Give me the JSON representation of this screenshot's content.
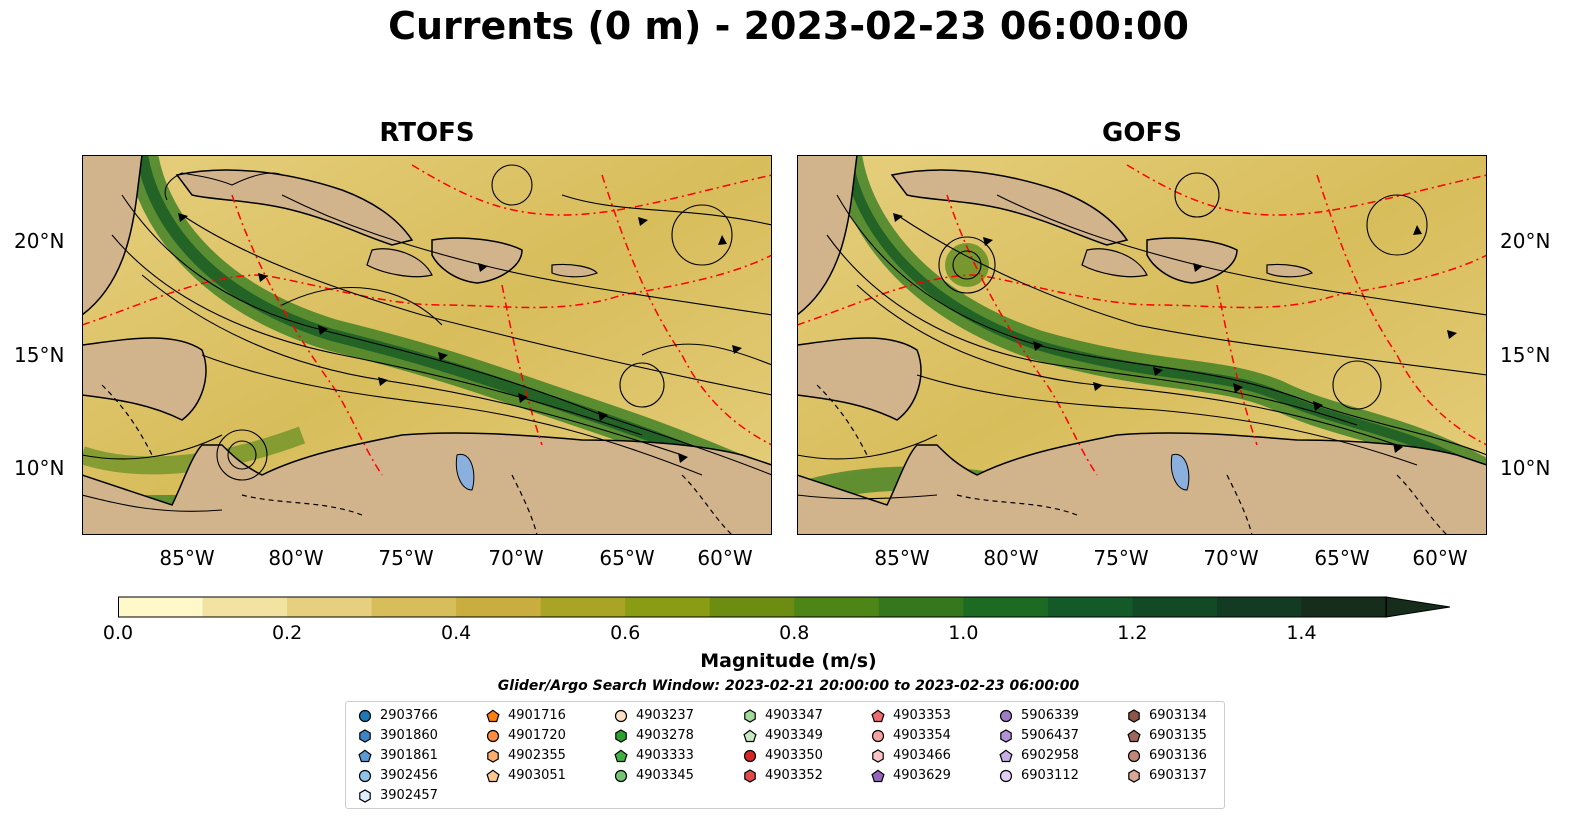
{
  "title": "Currents (0 m) - 2023-02-23 06:00:00",
  "panels": [
    {
      "title": "RTOFS"
    },
    {
      "title": "GOFS"
    }
  ],
  "lat_labels": [
    "20°N",
    "15°N",
    "10°N"
  ],
  "lon_labels": [
    "85°W",
    "80°W",
    "75°W",
    "70°W",
    "65°W",
    "60°W"
  ],
  "colorbar": {
    "label": "Magnitude (m/s)",
    "ticks": [
      "0.0",
      "0.2",
      "0.4",
      "0.6",
      "0.8",
      "1.0",
      "1.2",
      "1.4"
    ],
    "min": 0.0,
    "max": 1.5,
    "extend": "max",
    "colors": [
      "#fff8c8",
      "#f3e3a2",
      "#e6cf7e",
      "#d8bd5b",
      "#c9ad3e",
      "#a9a426",
      "#8a9b14",
      "#6c8d12",
      "#4d8516",
      "#35771c",
      "#1d6a23",
      "#145a28",
      "#124a26",
      "#133a22",
      "#162d1c"
    ]
  },
  "search_window": "Glider/Argo Search Window: 2023-02-21 20:00:00 to 2023-02-23 06:00:00",
  "colors": {
    "land": "#d2b48c",
    "coastline": "#000000",
    "eez_boundary": "#ff0000",
    "streamline": "#000000",
    "lake": "#8bb0de"
  },
  "legend": [
    {
      "id": "2903766",
      "marker": "circle",
      "color": "#1f77b4"
    },
    {
      "id": "3901860",
      "marker": "hexagon",
      "color": "#3d85c6"
    },
    {
      "id": "3901861",
      "marker": "pentagon",
      "color": "#5b9bd5"
    },
    {
      "id": "3902456",
      "marker": "circle",
      "color": "#8ec3ec"
    },
    {
      "id": "3902457",
      "marker": "hexagon",
      "color": "#ddeeff"
    },
    {
      "id": "4901716",
      "marker": "pentagon",
      "color": "#ff7f0e"
    },
    {
      "id": "4901720",
      "marker": "circle",
      "color": "#fd8d3c"
    },
    {
      "id": "4902355",
      "marker": "hexagon",
      "color": "#fdae6b"
    },
    {
      "id": "4903051",
      "marker": "pentagon",
      "color": "#fdc892"
    },
    {
      "id": "4903237",
      "marker": "circle",
      "color": "#fde0c5"
    },
    {
      "id": "4903278",
      "marker": "hexagon",
      "color": "#2ca02c"
    },
    {
      "id": "4903333",
      "marker": "pentagon",
      "color": "#41b041"
    },
    {
      "id": "4903345",
      "marker": "circle",
      "color": "#74c476"
    },
    {
      "id": "4903347",
      "marker": "hexagon",
      "color": "#a1d99b"
    },
    {
      "id": "4903349",
      "marker": "pentagon",
      "color": "#c7e9c0"
    },
    {
      "id": "4903350",
      "marker": "circle",
      "color": "#d62728"
    },
    {
      "id": "4903352",
      "marker": "hexagon",
      "color": "#e04a4a"
    },
    {
      "id": "4903353",
      "marker": "pentagon",
      "color": "#ee6b6e"
    },
    {
      "id": "4903354",
      "marker": "circle",
      "color": "#f4a3a3"
    },
    {
      "id": "4903466",
      "marker": "hexagon",
      "color": "#fcc5c5"
    },
    {
      "id": "4903629",
      "marker": "pentagon",
      "color": "#9467bd"
    },
    {
      "id": "5906339",
      "marker": "circle",
      "color": "#a07cc5"
    },
    {
      "id": "5906437",
      "marker": "hexagon",
      "color": "#b392d6"
    },
    {
      "id": "6902958",
      "marker": "pentagon",
      "color": "#c7aee4"
    },
    {
      "id": "6903112",
      "marker": "circle",
      "color": "#e0cff2"
    },
    {
      "id": "6903134",
      "marker": "hexagon",
      "color": "#8c564b"
    },
    {
      "id": "6903135",
      "marker": "pentagon",
      "color": "#a0685c"
    },
    {
      "id": "6903136",
      "marker": "circle",
      "color": "#c08878"
    },
    {
      "id": "6903137",
      "marker": "hexagon",
      "color": "#d9a898"
    }
  ]
}
